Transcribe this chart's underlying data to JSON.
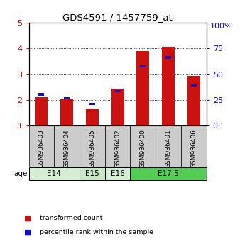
{
  "title": "GDS4591 / 1457759_at",
  "samples": [
    "GSM936403",
    "GSM936404",
    "GSM936405",
    "GSM936402",
    "GSM936400",
    "GSM936401",
    "GSM936406"
  ],
  "red_values": [
    2.12,
    2.02,
    1.65,
    2.45,
    3.9,
    4.05,
    2.92
  ],
  "blue_values": [
    2.22,
    2.07,
    1.85,
    2.35,
    3.3,
    3.65,
    2.57
  ],
  "age_groups": [
    {
      "label": "E14",
      "start": 0,
      "end": 2,
      "color": "#d4edd4"
    },
    {
      "label": "E15",
      "start": 2,
      "end": 3,
      "color": "#c8e8c8"
    },
    {
      "label": "E16",
      "start": 3,
      "end": 4,
      "color": "#d4edd4"
    },
    {
      "label": "E17.5",
      "start": 4,
      "end": 7,
      "color": "#55cc55"
    }
  ],
  "ylim": [
    1,
    5
  ],
  "yticks_left": [
    1,
    2,
    3,
    4,
    5
  ],
  "yticks_right": [
    0,
    25,
    50,
    75
  ],
  "yticks_right_pos": [
    1.0,
    2.0,
    3.0,
    4.0
  ],
  "ylabel_left_color": "#cc0000",
  "ylabel_right_color": "#0000cc",
  "bar_width": 0.5,
  "red_color": "#cc1111",
  "blue_color": "#1111cc",
  "sample_bg_color": "#cccccc",
  "legend_red": "transformed count",
  "legend_blue": "percentile rank within the sample",
  "age_label": "age",
  "right_ymax_label": "100%"
}
